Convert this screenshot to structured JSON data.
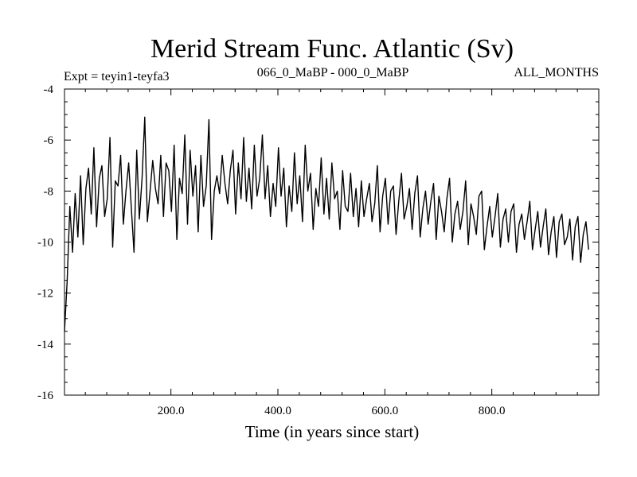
{
  "chart_data": {
    "type": "line",
    "title": "Merid Stream Func. Atlantic (Sv)",
    "subtitle_left": "Expt = teyin1-teyfa3",
    "subtitle_center": "066_0_MaBP - 000_0_MaBP",
    "subtitle_right": "ALL_MONTHS",
    "xlabel": "Time (in years since start)",
    "ylabel": "",
    "xlim": [
      1,
      1000
    ],
    "ylim": [
      -16,
      -4
    ],
    "x_ticks": [
      200,
      400,
      600,
      800
    ],
    "x_tick_labels": [
      "200.0",
      "400.0",
      "600.0",
      "800.0"
    ],
    "y_ticks": [
      -4,
      -6,
      -8,
      -10,
      -12,
      -14,
      -16
    ],
    "y_tick_labels": [
      "-4",
      "-6",
      "-8",
      "-10",
      "-12",
      "-14",
      "-16"
    ],
    "series": [
      {
        "name": "Merid Stream Func. Atlantic",
        "x_start": 1,
        "x_step": 5,
        "values": [
          -13.5,
          -11.5,
          -8.6,
          -10.4,
          -8.1,
          -9.8,
          -7.4,
          -10.1,
          -7.9,
          -7.1,
          -8.9,
          -6.3,
          -9.4,
          -7.5,
          -7.0,
          -9.0,
          -8.3,
          -5.9,
          -10.2,
          -7.6,
          -7.8,
          -6.6,
          -9.3,
          -8.0,
          -6.9,
          -8.7,
          -10.4,
          -6.4,
          -9.1,
          -7.5,
          -5.1,
          -9.2,
          -8.0,
          -6.8,
          -7.9,
          -8.5,
          -6.6,
          -9.0,
          -6.9,
          -7.2,
          -8.8,
          -6.2,
          -9.9,
          -7.5,
          -8.1,
          -5.8,
          -9.3,
          -6.4,
          -8.2,
          -7.0,
          -9.6,
          -6.6,
          -8.6,
          -7.8,
          -5.2,
          -9.9,
          -8.0,
          -7.4,
          -8.1,
          -6.6,
          -7.7,
          -8.5,
          -7.2,
          -6.4,
          -8.9,
          -6.9,
          -8.3,
          -5.9,
          -8.4,
          -7.1,
          -8.7,
          -6.2,
          -8.2,
          -7.5,
          -5.8,
          -8.3,
          -7.0,
          -9.0,
          -7.7,
          -8.6,
          -6.3,
          -8.2,
          -7.1,
          -9.4,
          -7.8,
          -8.8,
          -6.5,
          -8.5,
          -7.4,
          -9.2,
          -6.2,
          -8.0,
          -7.3,
          -9.5,
          -7.9,
          -8.6,
          -6.7,
          -8.9,
          -7.5,
          -9.1,
          -6.9,
          -8.3,
          -8.0,
          -9.5,
          -7.2,
          -8.6,
          -8.8,
          -7.3,
          -9.0,
          -7.9,
          -9.4,
          -7.6,
          -9.0,
          -8.3,
          -7.7,
          -9.2,
          -8.5,
          -7.0,
          -9.6,
          -8.2,
          -7.5,
          -9.3,
          -8.0,
          -7.8,
          -9.7,
          -8.4,
          -7.3,
          -9.1,
          -8.6,
          -7.9,
          -9.5,
          -8.1,
          -7.4,
          -9.8,
          -8.7,
          -8.0,
          -9.3,
          -8.4,
          -7.7,
          -9.9,
          -8.2,
          -8.8,
          -9.6,
          -8.3,
          -7.5,
          -10.0,
          -8.9,
          -8.4,
          -9.5,
          -8.8,
          -7.6,
          -10.1,
          -8.5,
          -9.0,
          -9.7,
          -8.2,
          -8.0,
          -10.3,
          -9.4,
          -8.6,
          -9.8,
          -9.0,
          -8.1,
          -10.2,
          -9.1,
          -8.7,
          -10.0,
          -8.8,
          -8.5,
          -10.4,
          -9.3,
          -8.9,
          -9.9,
          -9.2,
          -8.4,
          -10.3,
          -9.5,
          -8.8,
          -10.2,
          -9.4,
          -8.7,
          -10.5,
          -9.6,
          -9.0,
          -10.6,
          -9.2,
          -8.9,
          -10.1,
          -9.8,
          -9.1,
          -10.7,
          -9.4,
          -9.0,
          -10.8,
          -9.7,
          -9.2,
          -10.3
        ]
      }
    ]
  }
}
